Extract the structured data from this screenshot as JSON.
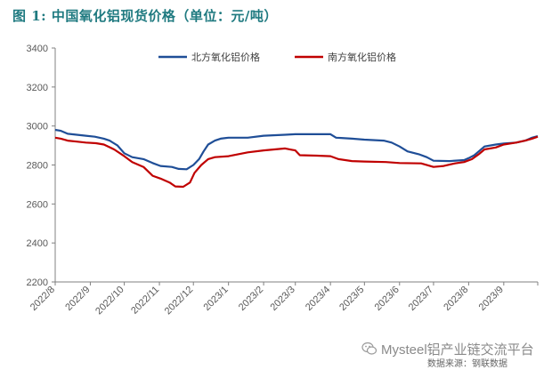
{
  "title": "图 1: 中国氧化铝现货价格（单位：元/吨）",
  "watermark": "Mysteel铝产业链交流平台",
  "source": "数据来源：钢联数据",
  "colors": {
    "north": "#1f4e97",
    "south": "#c00000",
    "title": "#1f7a80"
  },
  "chart_data": {
    "type": "line",
    "title": "图 1: 中国氧化铝现货价格（单位：元/吨）",
    "xlabel": "",
    "ylabel": "",
    "ylim": [
      2200,
      3400
    ],
    "yticks": [
      2200,
      2400,
      2600,
      2800,
      3000,
      3200,
      3400
    ],
    "xlim": [
      "2022-08-01",
      "2023-10-01"
    ],
    "xticks": [
      {
        "date": "2022-08-01",
        "label": "2022/8"
      },
      {
        "date": "2022-09-01",
        "label": "2022/9"
      },
      {
        "date": "2022-10-01",
        "label": "2022/10"
      },
      {
        "date": "2022-11-01",
        "label": "2022/11"
      },
      {
        "date": "2022-12-01",
        "label": "2022/12"
      },
      {
        "date": "2023-01-01",
        "label": "2023/1"
      },
      {
        "date": "2023-02-01",
        "label": "2023/2"
      },
      {
        "date": "2023-03-01",
        "label": "2023/3"
      },
      {
        "date": "2023-04-01",
        "label": "2023/4"
      },
      {
        "date": "2023-05-01",
        "label": "2023/5"
      },
      {
        "date": "2023-06-01",
        "label": "2023/6"
      },
      {
        "date": "2023-07-01",
        "label": "2023/7"
      },
      {
        "date": "2023-08-01",
        "label": "2023/8"
      },
      {
        "date": "2023-09-01",
        "label": "2023/9"
      }
    ],
    "grid": false,
    "legend_position": "top-right",
    "series": [
      {
        "name": "北方氧化铝价格",
        "color": "#1f4e97",
        "points": [
          [
            "2022-08-01",
            2980
          ],
          [
            "2022-08-06",
            2975
          ],
          [
            "2022-08-12",
            2960
          ],
          [
            "2022-08-20",
            2955
          ],
          [
            "2022-08-28",
            2950
          ],
          [
            "2022-09-05",
            2945
          ],
          [
            "2022-09-13",
            2935
          ],
          [
            "2022-09-18",
            2925
          ],
          [
            "2022-09-25",
            2900
          ],
          [
            "2022-10-01",
            2860
          ],
          [
            "2022-10-08",
            2840
          ],
          [
            "2022-10-18",
            2830
          ],
          [
            "2022-10-26",
            2810
          ],
          [
            "2022-11-02",
            2795
          ],
          [
            "2022-11-12",
            2790
          ],
          [
            "2022-11-18",
            2780
          ],
          [
            "2022-11-25",
            2778
          ],
          [
            "2022-12-01",
            2800
          ],
          [
            "2022-12-06",
            2830
          ],
          [
            "2022-12-10",
            2870
          ],
          [
            "2022-12-14",
            2905
          ],
          [
            "2022-12-20",
            2925
          ],
          [
            "2022-12-25",
            2935
          ],
          [
            "2023-01-01",
            2940
          ],
          [
            "2023-01-18",
            2940
          ],
          [
            "2023-02-01",
            2950
          ],
          [
            "2023-02-20",
            2955
          ],
          [
            "2023-03-01",
            2958
          ],
          [
            "2023-03-20",
            2958
          ],
          [
            "2023-04-01",
            2958
          ],
          [
            "2023-04-06",
            2940
          ],
          [
            "2023-04-20",
            2935
          ],
          [
            "2023-05-01",
            2930
          ],
          [
            "2023-05-18",
            2925
          ],
          [
            "2023-05-25",
            2915
          ],
          [
            "2023-06-01",
            2895
          ],
          [
            "2023-06-08",
            2870
          ],
          [
            "2023-06-18",
            2855
          ],
          [
            "2023-06-25",
            2840
          ],
          [
            "2023-07-01",
            2822
          ],
          [
            "2023-07-15",
            2820
          ],
          [
            "2023-07-28",
            2825
          ],
          [
            "2023-08-01",
            2835
          ],
          [
            "2023-08-06",
            2850
          ],
          [
            "2023-08-10",
            2870
          ],
          [
            "2023-08-15",
            2895
          ],
          [
            "2023-08-25",
            2905
          ],
          [
            "2023-09-01",
            2910
          ],
          [
            "2023-09-12",
            2915
          ],
          [
            "2023-09-20",
            2925
          ],
          [
            "2023-09-26",
            2940
          ],
          [
            "2023-10-01",
            2948
          ]
        ]
      },
      {
        "name": "南方氧化铝价格",
        "color": "#c00000",
        "points": [
          [
            "2022-08-01",
            2940
          ],
          [
            "2022-08-06",
            2935
          ],
          [
            "2022-08-12",
            2925
          ],
          [
            "2022-08-20",
            2920
          ],
          [
            "2022-08-28",
            2915
          ],
          [
            "2022-09-06",
            2912
          ],
          [
            "2022-09-13",
            2905
          ],
          [
            "2022-09-22",
            2880
          ],
          [
            "2022-10-01",
            2845
          ],
          [
            "2022-10-08",
            2815
          ],
          [
            "2022-10-18",
            2790
          ],
          [
            "2022-10-26",
            2745
          ],
          [
            "2022-11-02",
            2730
          ],
          [
            "2022-11-10",
            2710
          ],
          [
            "2022-11-15",
            2690
          ],
          [
            "2022-11-22",
            2688
          ],
          [
            "2022-11-28",
            2710
          ],
          [
            "2022-12-02",
            2760
          ],
          [
            "2022-12-08",
            2800
          ],
          [
            "2022-12-14",
            2830
          ],
          [
            "2022-12-20",
            2840
          ],
          [
            "2023-01-01",
            2845
          ],
          [
            "2023-01-18",
            2865
          ],
          [
            "2023-02-01",
            2875
          ],
          [
            "2023-02-20",
            2885
          ],
          [
            "2023-02-26",
            2878
          ],
          [
            "2023-03-01",
            2875
          ],
          [
            "2023-03-05",
            2850
          ],
          [
            "2023-03-20",
            2848
          ],
          [
            "2023-04-01",
            2845
          ],
          [
            "2023-04-08",
            2830
          ],
          [
            "2023-04-20",
            2820
          ],
          [
            "2023-05-01",
            2818
          ],
          [
            "2023-05-20",
            2815
          ],
          [
            "2023-06-01",
            2810
          ],
          [
            "2023-06-20",
            2808
          ],
          [
            "2023-07-01",
            2790
          ],
          [
            "2023-07-10",
            2795
          ],
          [
            "2023-07-20",
            2808
          ],
          [
            "2023-07-28",
            2815
          ],
          [
            "2023-08-04",
            2830
          ],
          [
            "2023-08-10",
            2855
          ],
          [
            "2023-08-15",
            2880
          ],
          [
            "2023-08-25",
            2890
          ],
          [
            "2023-09-01",
            2905
          ],
          [
            "2023-09-12",
            2915
          ],
          [
            "2023-09-20",
            2925
          ],
          [
            "2023-09-26",
            2935
          ],
          [
            "2023-10-01",
            2945
          ]
        ]
      }
    ]
  }
}
